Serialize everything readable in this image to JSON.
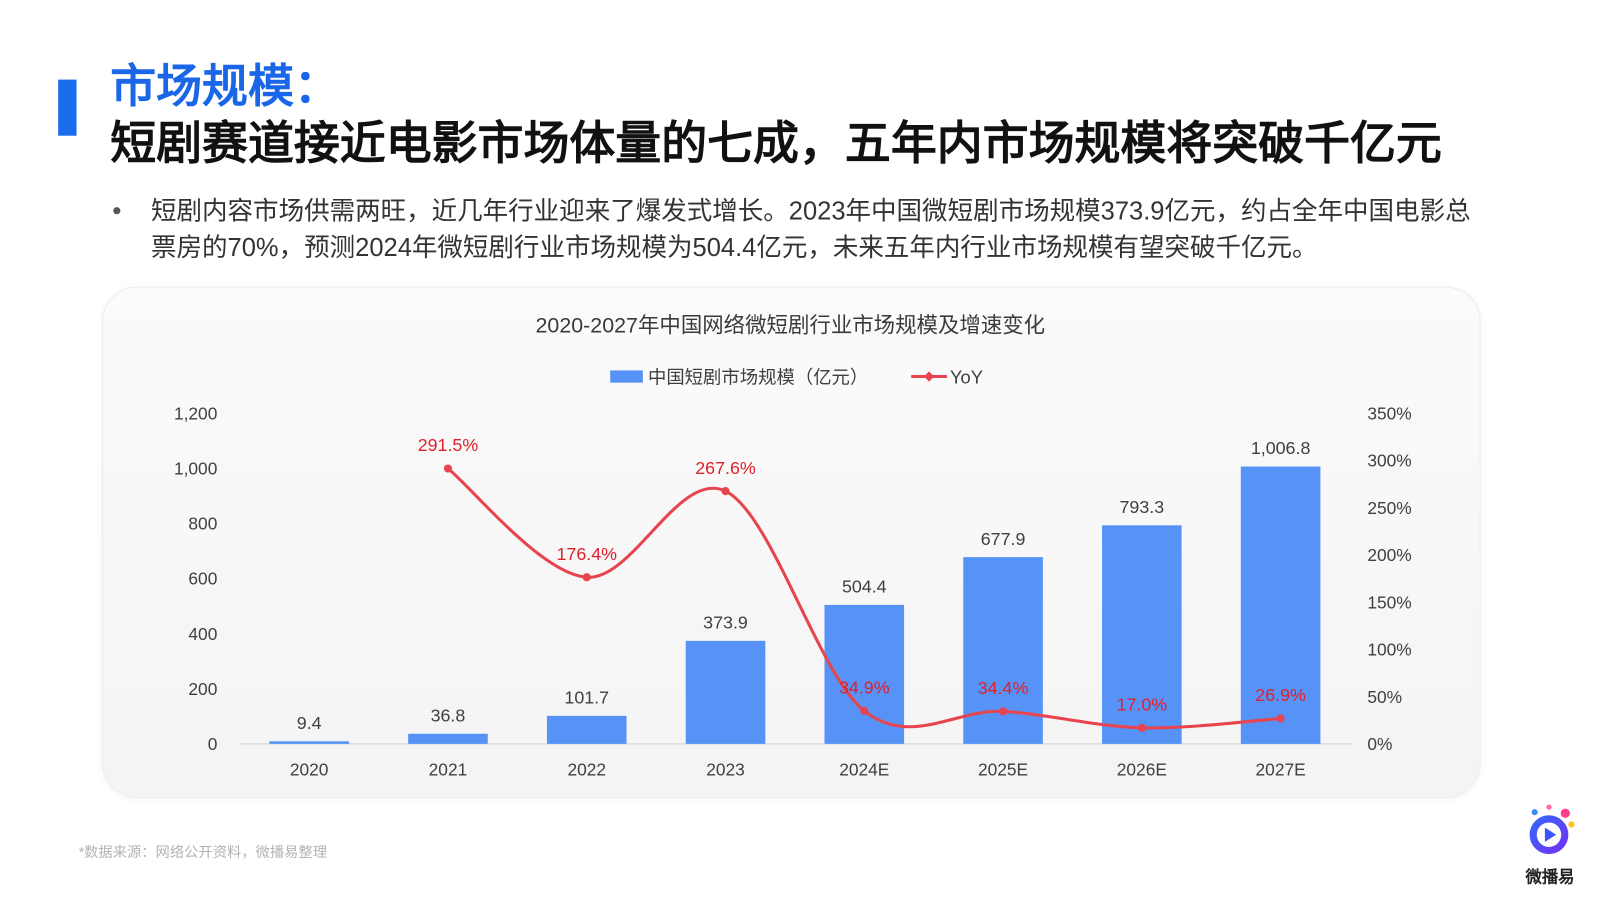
{
  "slide": {
    "title_line1": "市场规模：",
    "title_line2": "短剧赛道接近电影市场体量的七成，五年内市场规模将突破千亿元",
    "bullet_text": "短剧内容市场供需两旺，近几年行业迎来了爆发式增长。2023年中国微短剧市场规模373.9亿元，约占全年中国电影总票房的70%，预测2024年微短剧行业市场规模为504.4亿元，未来五年内行业市场规模有望突破千亿元。",
    "source_note": "*数据来源：网络公开资料，微播易整理",
    "logo_text": "微播易",
    "logo_icon": "play-circle-icon"
  },
  "colors": {
    "accent": "#1a6cec",
    "bar": "#5793f7",
    "line": "#e8444e",
    "line_label": "#e0202a"
  },
  "chart_data": {
    "type": "bar",
    "title": "2020-2027年中国网络微短剧行业市场规模及增速变化",
    "categories": [
      "2020",
      "2021",
      "2022",
      "2023",
      "2024E",
      "2025E",
      "2026E",
      "2027E"
    ],
    "series": [
      {
        "name": "中国短剧市场规模（亿元）",
        "type": "bar",
        "axis": "left",
        "values": [
          9.4,
          36.8,
          101.7,
          373.9,
          504.4,
          677.9,
          793.3,
          1006.8
        ],
        "labels": [
          "9.4",
          "36.8",
          "101.7",
          "373.9",
          "504.4",
          "677.9",
          "793.3",
          "1,006.8"
        ]
      },
      {
        "name": "YoY",
        "type": "line",
        "axis": "right",
        "values": [
          null,
          291.5,
          176.4,
          267.6,
          34.9,
          34.4,
          17.0,
          26.9
        ],
        "labels": [
          null,
          "291.5%",
          "176.4%",
          "267.6%",
          "34.9%",
          "34.4%",
          "17.0%",
          "26.9%"
        ]
      }
    ],
    "ylim": [
      0,
      1200
    ],
    "y_ticks": [
      "0",
      "200",
      "400",
      "600",
      "800",
      "1,000",
      "1,200"
    ],
    "y2lim": [
      0,
      350
    ],
    "y2_ticks": [
      "0%",
      "50%",
      "100%",
      "150%",
      "200%",
      "250%",
      "300%",
      "350%"
    ],
    "xlabel": "",
    "ylabel": "",
    "legend": "top-center",
    "grid": false
  }
}
